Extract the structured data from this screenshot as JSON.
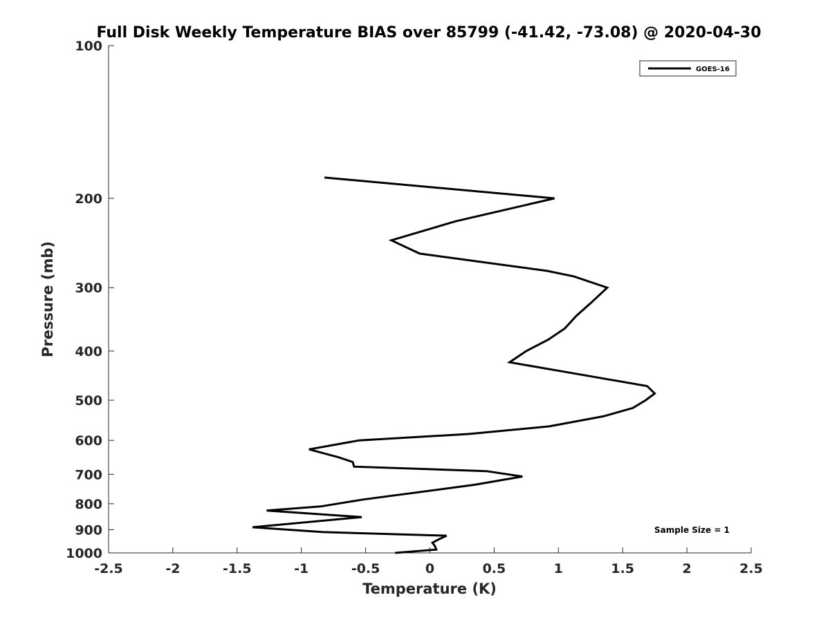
{
  "chart_data": {
    "type": "line",
    "title": "Full Disk Weekly Temperature BIAS over 85799 (-41.42, -73.08) @ 2020-04-30",
    "xlabel": "Temperature (K)",
    "ylabel": "Pressure (mb)",
    "xlim": [
      -2.5,
      2.5
    ],
    "ylim": [
      100,
      1000
    ],
    "y_scale": "log",
    "y_reversed": true,
    "x_ticks": [
      "-2.5",
      "-2",
      "-1.5",
      "-1",
      "-0.5",
      "0",
      "0.5",
      "1",
      "1.5",
      "2",
      "2.5"
    ],
    "x_tick_values": [
      -2.5,
      -2,
      -1.5,
      -1,
      -0.5,
      0,
      0.5,
      1,
      1.5,
      2,
      2.5
    ],
    "y_ticks": [
      "100",
      "200",
      "300",
      "400",
      "500",
      "600",
      "700",
      "800",
      "900",
      "1000"
    ],
    "y_tick_values": [
      100,
      200,
      300,
      400,
      500,
      600,
      700,
      800,
      900,
      1000
    ],
    "grid": false,
    "legend_position": "top-right",
    "annotation": "Sample Size = 1",
    "line_color": "#000000",
    "series": [
      {
        "name": "GOES-16",
        "points": [
          {
            "x": -0.27,
            "p": 1000
          },
          {
            "x": 0.05,
            "p": 985
          },
          {
            "x": 0.04,
            "p": 970
          },
          {
            "x": 0.02,
            "p": 955
          },
          {
            "x": 0.07,
            "p": 940
          },
          {
            "x": 0.13,
            "p": 925
          },
          {
            "x": -0.83,
            "p": 910
          },
          {
            "x": -1.38,
            "p": 890
          },
          {
            "x": -0.53,
            "p": 850
          },
          {
            "x": -1.27,
            "p": 825
          },
          {
            "x": -0.85,
            "p": 810
          },
          {
            "x": -0.52,
            "p": 785
          },
          {
            "x": 0.35,
            "p": 734
          },
          {
            "x": 0.72,
            "p": 707
          },
          {
            "x": 0.44,
            "p": 690
          },
          {
            "x": -0.59,
            "p": 676
          },
          {
            "x": -0.6,
            "p": 662
          },
          {
            "x": -0.71,
            "p": 648
          },
          {
            "x": -0.94,
            "p": 625
          },
          {
            "x": -0.55,
            "p": 600
          },
          {
            "x": 0.3,
            "p": 583
          },
          {
            "x": 0.93,
            "p": 563
          },
          {
            "x": 1.35,
            "p": 538
          },
          {
            "x": 1.58,
            "p": 518
          },
          {
            "x": 1.68,
            "p": 500
          },
          {
            "x": 1.75,
            "p": 485
          },
          {
            "x": 1.69,
            "p": 469
          },
          {
            "x": 1.06,
            "p": 440
          },
          {
            "x": 0.62,
            "p": 421
          },
          {
            "x": 0.75,
            "p": 400
          },
          {
            "x": 0.92,
            "p": 380
          },
          {
            "x": 1.05,
            "p": 361
          },
          {
            "x": 1.14,
            "p": 341
          },
          {
            "x": 1.25,
            "p": 322
          },
          {
            "x": 1.38,
            "p": 300
          },
          {
            "x": 1.12,
            "p": 285
          },
          {
            "x": 0.91,
            "p": 278
          },
          {
            "x": -0.08,
            "p": 257
          },
          {
            "x": -0.3,
            "p": 242
          },
          {
            "x": 0.2,
            "p": 222
          },
          {
            "x": 0.97,
            "p": 200
          },
          {
            "x": -0.82,
            "p": 182
          }
        ]
      }
    ]
  }
}
